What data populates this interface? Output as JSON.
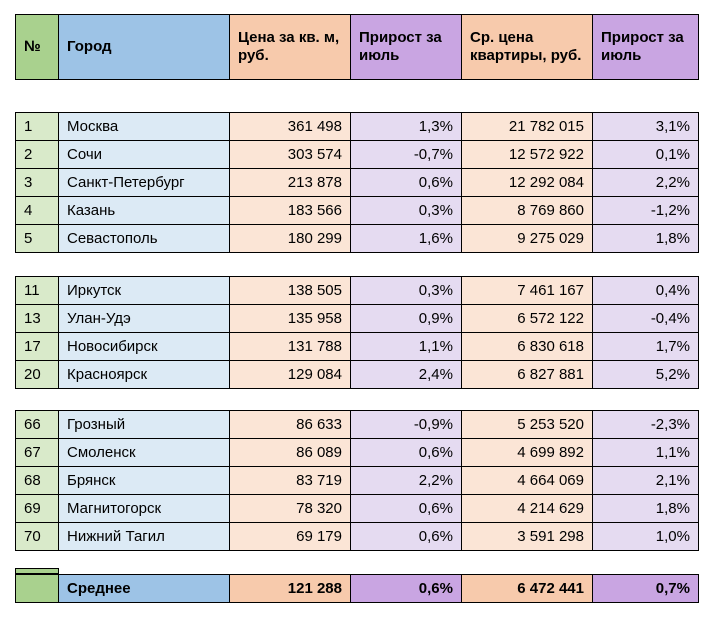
{
  "colors": {
    "header_green": "#A9D18E",
    "header_blue": "#9DC3E6",
    "header_peach": "#F7CAAC",
    "header_purple": "#C9A5E2",
    "body_green": "#D9EACA",
    "body_blue": "#DCEAF5",
    "body_peach": "#FBE5D6",
    "body_purple": "#E5DBF1",
    "border": "#000000",
    "background": "#FFFFFF"
  },
  "table": {
    "headers": [
      "№",
      "Город",
      "Цена за кв. м, руб.",
      "Прирост за июль",
      "Ср. цена квартиры, руб.",
      "Прирост за июль"
    ],
    "groups": [
      {
        "rows": [
          [
            "1",
            "Москва",
            "361 498",
            "1,3%",
            "21 782 015",
            "3,1%"
          ],
          [
            "2",
            "Сочи",
            "303 574",
            "-0,7%",
            "12 572 922",
            "0,1%"
          ],
          [
            "3",
            "Санкт-Петербург",
            "213 878",
            "0,6%",
            "12 292 084",
            "2,2%"
          ],
          [
            "4",
            "Казань",
            "183 566",
            "0,3%",
            "8 769 860",
            "-1,2%"
          ],
          [
            "5",
            "Севастополь",
            "180 299",
            "1,6%",
            "9 275 029",
            "1,8%"
          ]
        ]
      },
      {
        "rows": [
          [
            "11",
            "Иркутск",
            "138 505",
            "0,3%",
            "7 461 167",
            "0,4%"
          ],
          [
            "13",
            "Улан-Удэ",
            "135 958",
            "0,9%",
            "6 572 122",
            "-0,4%"
          ],
          [
            "17",
            "Новосибирск",
            "131 788",
            "1,1%",
            "6 830 618",
            "1,7%"
          ],
          [
            "20",
            "Красноярск",
            "129 084",
            "2,4%",
            "6 827 881",
            "5,2%"
          ]
        ]
      },
      {
        "rows": [
          [
            "66",
            "Грозный",
            "86 633",
            "-0,9%",
            "5 253 520",
            "-2,3%"
          ],
          [
            "67",
            "Смоленск",
            "86 089",
            "0,6%",
            "4 699 892",
            "1,1%"
          ],
          [
            "68",
            "Брянск",
            "83 719",
            "2,2%",
            "4 664 069",
            "2,1%"
          ],
          [
            "69",
            "Магнитогорск",
            "78 320",
            "0,6%",
            "4 214 629",
            "1,8%"
          ],
          [
            "70",
            "Нижний Тагил",
            "69 179",
            "0,6%",
            "3 591 298",
            "1,0%"
          ]
        ]
      }
    ],
    "summary": {
      "label": "Среднее",
      "values": [
        "121 288",
        "0,6%",
        "6 472 441",
        "0,7%"
      ]
    }
  },
  "chart_data": {
    "type": "table",
    "columns": [
      "№",
      "Город",
      "Цена за кв. м, руб.",
      "Прирост за июль",
      "Ср. цена квартиры, руб.",
      "Прирост за июль"
    ],
    "rows": [
      [
        "1",
        "Москва",
        "361 498",
        "1,3%",
        "21 782 015",
        "3,1%"
      ],
      [
        "2",
        "Сочи",
        "303 574",
        "-0,7%",
        "12 572 922",
        "0,1%"
      ],
      [
        "3",
        "Санкт-Петербург",
        "213 878",
        "0,6%",
        "12 292 084",
        "2,2%"
      ],
      [
        "4",
        "Казань",
        "183 566",
        "0,3%",
        "8 769 860",
        "-1,2%"
      ],
      [
        "5",
        "Севастополь",
        "180 299",
        "1,6%",
        "9 275 029",
        "1,8%"
      ],
      [
        "11",
        "Иркутск",
        "138 505",
        "0,3%",
        "7 461 167",
        "0,4%"
      ],
      [
        "13",
        "Улан-Удэ",
        "135 958",
        "0,9%",
        "6 572 122",
        "-0,4%"
      ],
      [
        "17",
        "Новосибирск",
        "131 788",
        "1,1%",
        "6 830 618",
        "1,7%"
      ],
      [
        "20",
        "Красноярск",
        "129 084",
        "2,4%",
        "6 827 881",
        "5,2%"
      ],
      [
        "66",
        "Грозный",
        "86 633",
        "-0,9%",
        "5 253 520",
        "-2,3%"
      ],
      [
        "67",
        "Смоленск",
        "86 089",
        "0,6%",
        "4 699 892",
        "1,1%"
      ],
      [
        "68",
        "Брянск",
        "83 719",
        "2,2%",
        "4 664 069",
        "2,1%"
      ],
      [
        "69",
        "Магнитогорск",
        "78 320",
        "0,6%",
        "4 214 629",
        "1,8%"
      ],
      [
        "70",
        "Нижний Тагил",
        "69 179",
        "0,6%",
        "3 591 298",
        "1,0%"
      ]
    ],
    "summary_row": [
      "",
      "Среднее",
      "121 288",
      "0,6%",
      "6 472 441",
      "0,7%"
    ]
  }
}
